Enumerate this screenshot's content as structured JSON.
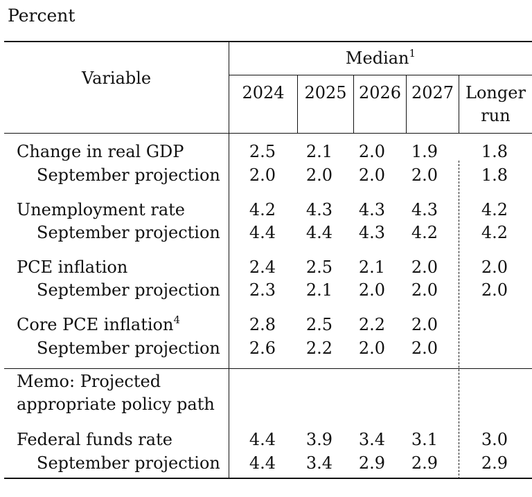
{
  "unit_label": "Percent",
  "header": {
    "variable": "Variable",
    "median": "Median",
    "median_footnote": "1",
    "years": [
      "2024",
      "2025",
      "2026",
      "2027"
    ],
    "longer_run_line1": "Longer",
    "longer_run_line2": "run"
  },
  "rows": [
    {
      "label": "Change in real GDP",
      "values": [
        "2.5",
        "2.1",
        "2.0",
        "1.9"
      ],
      "longer": "1.8"
    },
    {
      "label": "September projection",
      "values": [
        "2.0",
        "2.0",
        "2.0",
        "2.0"
      ],
      "longer": "1.8"
    },
    {
      "label": "Unemployment rate",
      "values": [
        "4.2",
        "4.3",
        "4.3",
        "4.3"
      ],
      "longer": "4.2"
    },
    {
      "label": "September projection",
      "values": [
        "4.4",
        "4.4",
        "4.3",
        "4.2"
      ],
      "longer": "4.2"
    },
    {
      "label": "PCE inflation",
      "values": [
        "2.4",
        "2.5",
        "2.1",
        "2.0"
      ],
      "longer": "2.0"
    },
    {
      "label": "September projection",
      "values": [
        "2.3",
        "2.1",
        "2.0",
        "2.0"
      ],
      "longer": "2.0"
    },
    {
      "label": "Core PCE inflation",
      "footnote": "4",
      "values": [
        "2.8",
        "2.5",
        "2.2",
        "2.0"
      ],
      "longer": ""
    },
    {
      "label": "September projection",
      "values": [
        "2.6",
        "2.2",
        "2.0",
        "2.0"
      ],
      "longer": ""
    }
  ],
  "memo": {
    "line1": "Memo: Projected",
    "line2": "appropriate policy path"
  },
  "memo_rows": [
    {
      "label": "Federal funds rate",
      "values": [
        "4.4",
        "3.9",
        "3.4",
        "3.1"
      ],
      "longer": "3.0"
    },
    {
      "label": "September projection",
      "values": [
        "4.4",
        "3.4",
        "2.9",
        "2.9"
      ],
      "longer": "2.9"
    }
  ]
}
